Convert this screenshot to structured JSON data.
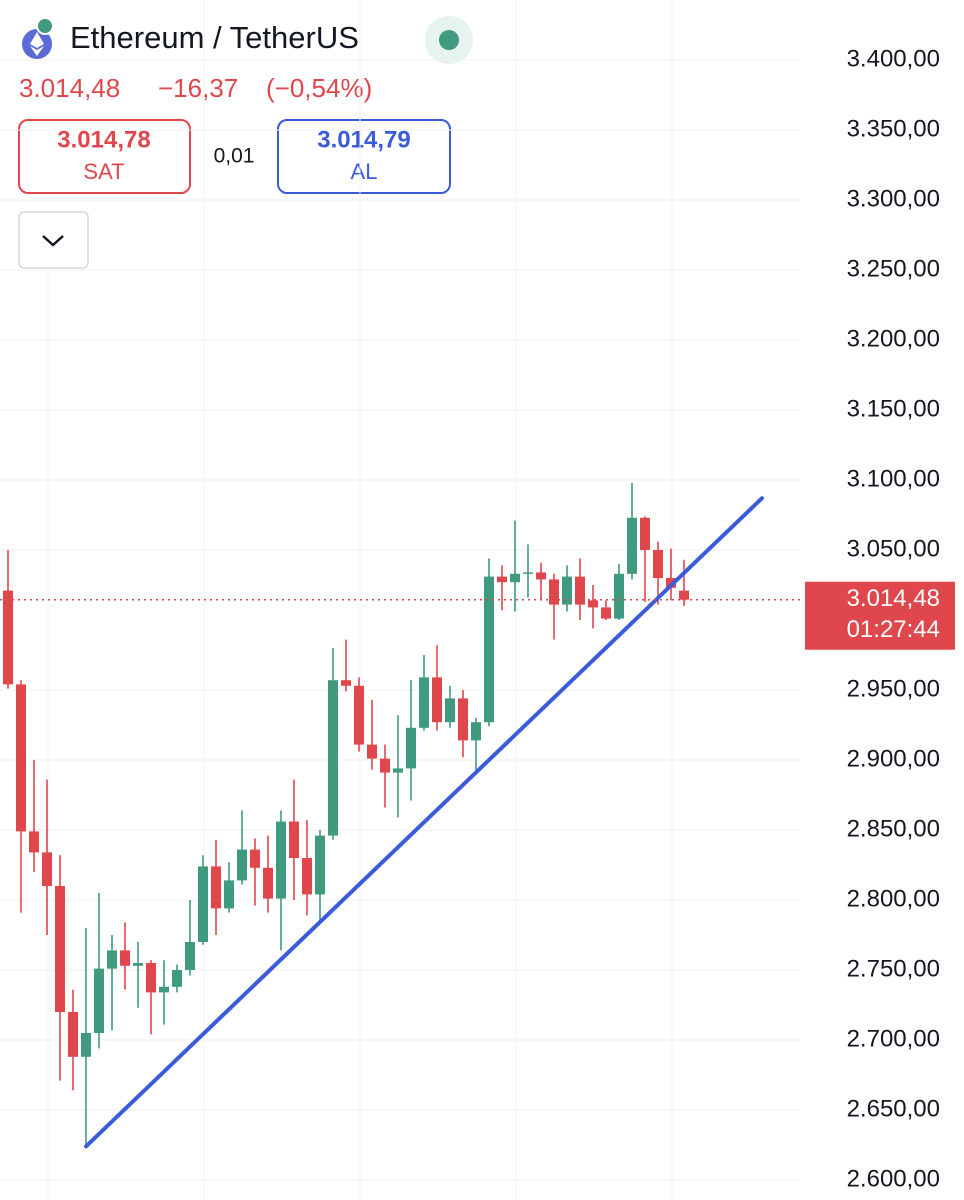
{
  "chart_data": {
    "type": "candlestick",
    "title": "Ethereum / TetherUS",
    "price": "3.014,48",
    "change": "−16,37",
    "change_pct": "(−0,54%)",
    "sell": {
      "price": "3.014,78",
      "label": "SAT"
    },
    "spread": "0,01",
    "buy": {
      "price": "3.014,79",
      "label": "AL"
    },
    "up_color": "#3f9a7f",
    "down_color": "#e0474c",
    "grid": true,
    "ylim": [
      2600,
      3400
    ],
    "yticks": [
      {
        "value": 3400,
        "label": "3.400,00"
      },
      {
        "value": 3350,
        "label": "3.350,00"
      },
      {
        "value": 3300,
        "label": "3.300,00"
      },
      {
        "value": 3250,
        "label": "3.250,00"
      },
      {
        "value": 3200,
        "label": "3.200,00"
      },
      {
        "value": 3150,
        "label": "3.150,00"
      },
      {
        "value": 3100,
        "label": "3.100,00"
      },
      {
        "value": 3050,
        "label": "3.050,00"
      },
      {
        "value": 2950,
        "label": "2.950,00"
      },
      {
        "value": 2900,
        "label": "2.900,00"
      },
      {
        "value": 2850,
        "label": "2.850,00"
      },
      {
        "value": 2800,
        "label": "2.800,00"
      },
      {
        "value": 2750,
        "label": "2.750,00"
      },
      {
        "value": 2700,
        "label": "2.700,00"
      },
      {
        "value": 2650,
        "label": "2.650,00"
      },
      {
        "value": 2600,
        "label": "2.600,00"
      }
    ],
    "open": [
      3021,
      2954,
      2849,
      2834,
      2810,
      2720,
      2688,
      2705,
      2751,
      2764,
      2753,
      2755,
      2734,
      2738,
      2750,
      2770,
      2824,
      2794,
      2814,
      2836,
      2823,
      2801,
      2856,
      2830,
      2804,
      2846,
      2957,
      2953,
      2911,
      2901,
      2891,
      2894,
      2923,
      2959,
      2927,
      2944,
      2914,
      2927,
      3031,
      3027,
      3033,
      3034,
      3029,
      3011,
      3031,
      3014,
      3009,
      3001,
      3033,
      3073,
      3050,
      3030,
      3021
    ],
    "high": [
      3050,
      2957,
      2900,
      2886,
      2832,
      2736,
      2780,
      2805,
      2775,
      2784,
      2770,
      2757,
      2757,
      2754,
      2800,
      2832,
      2843,
      2827,
      2864,
      2844,
      2846,
      2864,
      2886,
      2857,
      2850,
      2980,
      2986,
      2959,
      2943,
      2911,
      2932,
      2957,
      2975,
      2982,
      2953,
      2950,
      2930,
      3044,
      3039,
      3071,
      3054,
      3041,
      3033,
      3039,
      3044,
      3025,
      3014,
      3040,
      3098,
      3074,
      3056,
      3051,
      3043
    ],
    "low": [
      2951,
      2791,
      2820,
      2775,
      2671,
      2664,
      2625,
      2694,
      2707,
      2736,
      2723,
      2704,
      2711,
      2734,
      2746,
      2768,
      2775,
      2791,
      2811,
      2796,
      2791,
      2764,
      2800,
      2789,
      2786,
      2843,
      2949,
      2906,
      2893,
      2866,
      2859,
      2871,
      2921,
      2921,
      2923,
      2902,
      2893,
      2924,
      3007,
      3006,
      3016,
      3014,
      2986,
      3006,
      3000,
      2994,
      3000,
      3000,
      3029,
      3013,
      3011,
      3014,
      3010
    ],
    "close": [
      2954,
      2849,
      2834,
      2810,
      2720,
      2688,
      2705,
      2751,
      2764,
      2753,
      2755,
      2734,
      2738,
      2750,
      2770,
      2824,
      2794,
      2814,
      2836,
      2823,
      2801,
      2856,
      2830,
      2804,
      2846,
      2957,
      2953,
      2911,
      2901,
      2891,
      2894,
      2923,
      2959,
      2927,
      2944,
      2914,
      2927,
      3031,
      3027,
      3033,
      3034,
      3029,
      3011,
      3031,
      3011,
      3009,
      3001,
      3033,
      3073,
      3050,
      3030,
      3023,
      3014.48
    ],
    "last": {
      "value": 3014.48,
      "label": "3.014,48",
      "countdown": "01:27:44"
    },
    "trendline": {
      "x": [
        6,
        58
      ],
      "values": [
        2624,
        3087
      ],
      "color": "#3b5bdb"
    }
  }
}
